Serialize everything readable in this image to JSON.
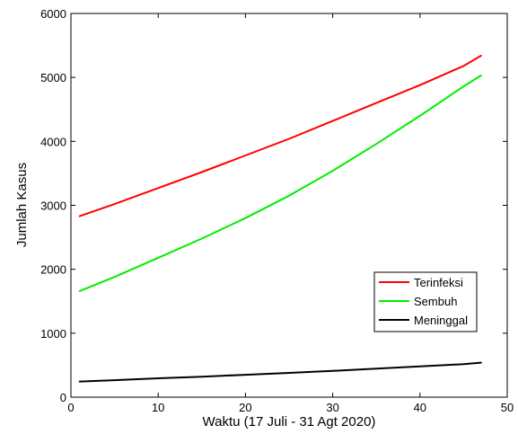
{
  "chart_data": {
    "type": "line",
    "xlabel": "Waktu (17 Juli - 31 Agt 2020)",
    "ylabel": "Jumlah Kasus",
    "xlim": [
      0,
      50
    ],
    "ylim": [
      0,
      6000
    ],
    "xticks": [
      0,
      10,
      20,
      30,
      40,
      50
    ],
    "yticks": [
      0,
      1000,
      2000,
      3000,
      4000,
      5000,
      6000
    ],
    "grid": false,
    "legend_position": "lower-right",
    "x": [
      1,
      5,
      10,
      15,
      20,
      25,
      30,
      35,
      40,
      45,
      47
    ],
    "series": [
      {
        "name": "Terinfeksi",
        "color": "#ff0000",
        "values": [
          2830,
          3020,
          3270,
          3520,
          3780,
          4040,
          4320,
          4600,
          4880,
          5180,
          5340
        ]
      },
      {
        "name": "Sembuh",
        "color": "#00ee00",
        "values": [
          1660,
          1880,
          2180,
          2480,
          2800,
          3150,
          3540,
          3960,
          4400,
          4860,
          5030
        ]
      },
      {
        "name": "Meninggal",
        "color": "#000000",
        "values": [
          245,
          265,
          295,
          320,
          350,
          380,
          410,
          445,
          480,
          515,
          540
        ]
      }
    ]
  }
}
